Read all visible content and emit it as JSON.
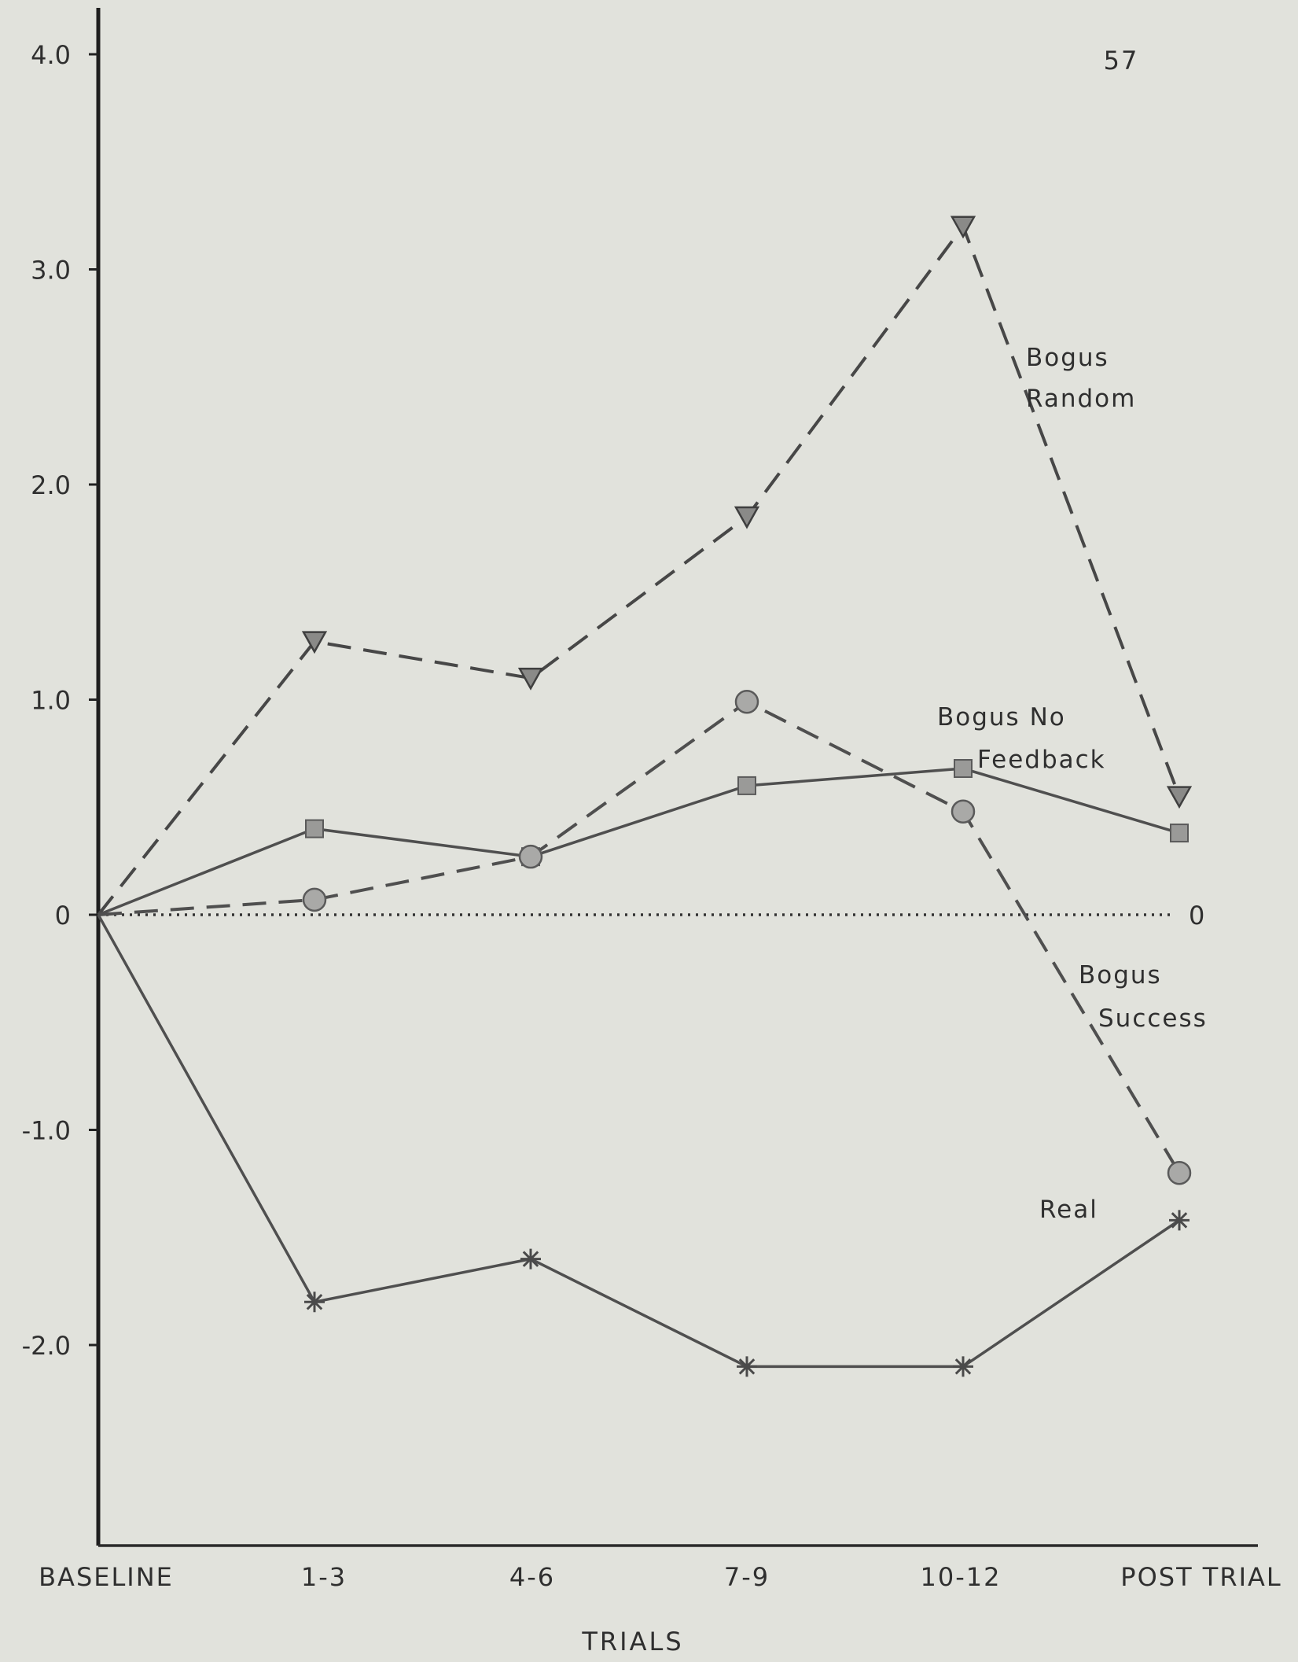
{
  "page_number": "57",
  "chart_data": {
    "type": "line",
    "title": "",
    "xlabel": "TRIALS",
    "ylabel": "",
    "categories": [
      "BASELINE",
      "1-3",
      "4-6",
      "7-9",
      "10-12",
      "POST  TRIAL"
    ],
    "ylim": [
      -3.0,
      4.0
    ],
    "yticks": [
      4.0,
      3.0,
      2.0,
      1.0,
      0,
      -1.0,
      -2.0
    ],
    "ytick_labels": [
      "4.0",
      "3.0",
      "2.0",
      "1.0",
      "0",
      "-1.0",
      "-2.0"
    ],
    "zero_line_label": "0",
    "legend": "inline labels next to each line",
    "series": [
      {
        "key": "bogus_random",
        "label_lines": [
          "Bogus",
          "Random"
        ],
        "values": [
          0,
          1.27,
          1.1,
          1.85,
          3.2,
          0.55
        ],
        "line_style": "dashed",
        "marker": "triangle-down",
        "color": "#474747"
      },
      {
        "key": "bogus_no_feedback",
        "label_lines": [
          "Bogus  No",
          "Feedback"
        ],
        "values": [
          0,
          0.4,
          0.27,
          0.6,
          0.68,
          0.38
        ],
        "line_style": "solid",
        "marker": "square",
        "color": "#4f4f4f"
      },
      {
        "key": "bogus_success",
        "label_lines": [
          "Bogus",
          "Success"
        ],
        "values": [
          0,
          0.07,
          0.27,
          0.99,
          0.48,
          -1.2
        ],
        "line_style": "dashed",
        "marker": "circle",
        "color": "#4f4f4f"
      },
      {
        "key": "real",
        "label_lines": [
          "Real"
        ],
        "values": [
          0,
          -1.8,
          -1.6,
          -2.1,
          -2.1,
          -1.42
        ],
        "line_style": "solid",
        "marker": "star",
        "color": "#4f4f4f"
      }
    ]
  }
}
